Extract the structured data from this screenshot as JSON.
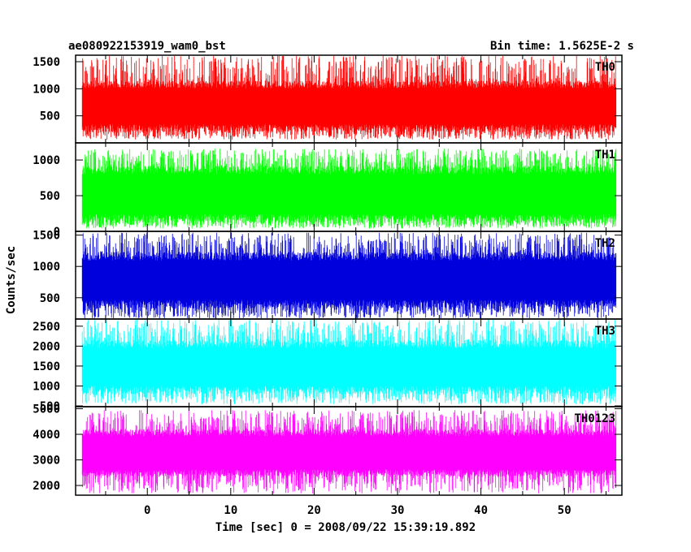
{
  "header": {
    "title": "ae080922153919_wam0_bst",
    "bin_time": "Bin time: 1.5625E-2 s"
  },
  "axes": {
    "xlabel": "Time [sec] 0 = 2008/09/22 15:39:19.892",
    "ylabel": "Counts/sec"
  },
  "chart_data": {
    "type": "line",
    "xlabel": "Time [sec] 0 = 2008/09/22 15:39:19.892",
    "ylabel": "Counts/sec",
    "xlim": [
      -8.6,
      56.9
    ],
    "data_range_x": [
      -7.8,
      56.2
    ],
    "bin_time_s": 0.015625,
    "x_ticks": [
      0,
      10,
      20,
      30,
      40,
      50
    ],
    "panels": [
      {
        "name": "TH0",
        "color": "#ff0000",
        "ylim": [
          0,
          1620
        ],
        "yticks": [
          500,
          1000,
          1500
        ],
        "band_low": 200,
        "band_high": 1150,
        "spike_min": 60,
        "spike_max": 1620
      },
      {
        "name": "TH1",
        "color": "#00ff00",
        "ylim": [
          0,
          1240
        ],
        "yticks": [
          0,
          500,
          1000
        ],
        "band_low": 120,
        "band_high": 920,
        "spike_min": 40,
        "spike_max": 1160
      },
      {
        "name": "TH2",
        "color": "#0000dd",
        "ylim": [
          160,
          1560
        ],
        "yticks": [
          500,
          1000,
          1500
        ],
        "band_low": 330,
        "band_high": 1230,
        "spike_min": 170,
        "spike_max": 1540
      },
      {
        "name": "TH3",
        "color": "#00ffff",
        "ylim": [
          480,
          2680
        ],
        "yticks": [
          500,
          1000,
          1500,
          2000,
          2500
        ],
        "band_low": 800,
        "band_high": 2150,
        "spike_min": 540,
        "spike_max": 2670
      },
      {
        "name": "TH0123",
        "color": "#ff00ff",
        "ylim": [
          1620,
          5080
        ],
        "yticks": [
          2000,
          3000,
          4000,
          5000
        ],
        "band_low": 2350,
        "band_high": 4200,
        "spike_min": 1680,
        "spike_max": 4950
      }
    ]
  }
}
